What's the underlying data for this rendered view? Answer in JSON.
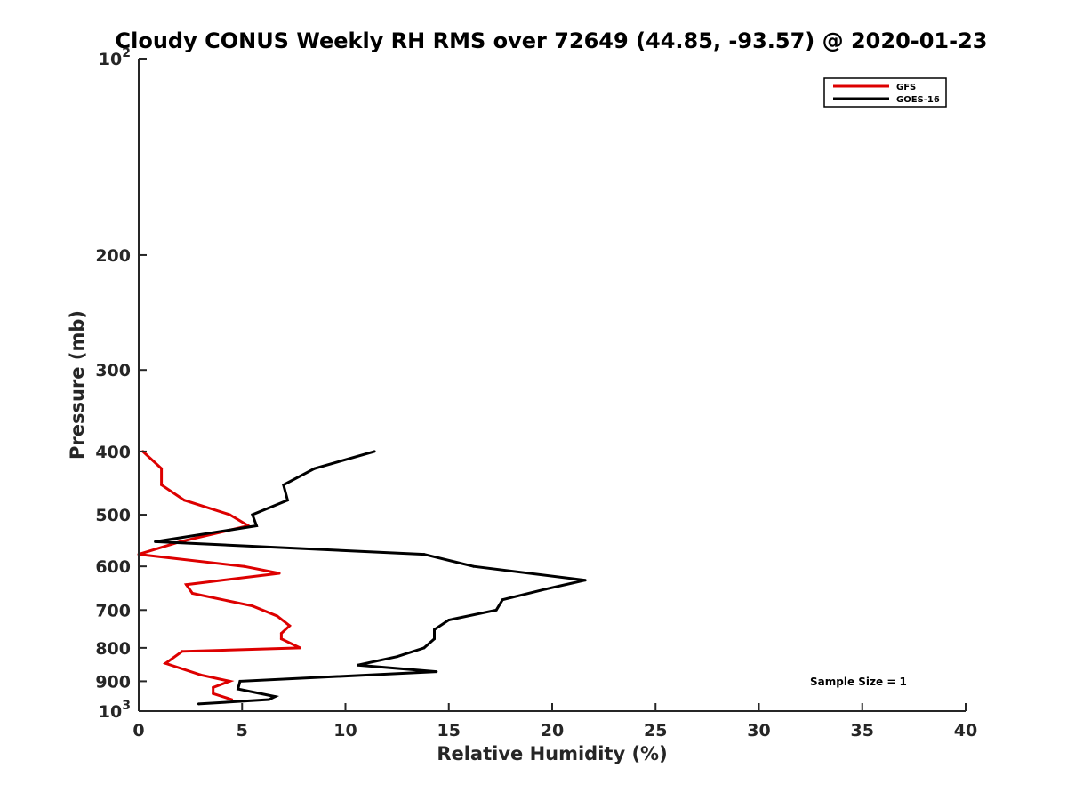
{
  "chart_data": {
    "type": "line",
    "title": "Cloudy CONUS Weekly RH RMS over 72649 (44.85, -93.57) @ 2020-01-23",
    "xlabel": "Relative Humidity (%)",
    "ylabel": "Pressure (mb)",
    "xlim": [
      0,
      40
    ],
    "ylim": [
      100,
      1000
    ],
    "y_scale": "log",
    "y_reversed": true,
    "x_ticks": [
      0,
      5,
      10,
      15,
      20,
      25,
      30,
      35,
      40
    ],
    "x_tick_labels": [
      "0",
      "5",
      "10",
      "15",
      "20",
      "25",
      "30",
      "35",
      "40"
    ],
    "y_ticks": [
      100,
      200,
      300,
      400,
      500,
      600,
      700,
      800,
      900,
      1000
    ],
    "y_tick_labels": [
      {
        "base": "10",
        "sup": "2"
      },
      {
        "base": "200",
        "sup": ""
      },
      {
        "base": "300",
        "sup": ""
      },
      {
        "base": "400",
        "sup": ""
      },
      {
        "base": "500",
        "sup": ""
      },
      {
        "base": "600",
        "sup": ""
      },
      {
        "base": "700",
        "sup": ""
      },
      {
        "base": "800",
        "sup": ""
      },
      {
        "base": "900",
        "sup": ""
      },
      {
        "base": "10",
        "sup": "3"
      }
    ],
    "grid": false,
    "legend_position": "top-right",
    "series": [
      {
        "name": "GFS",
        "color": "#dd0000",
        "points": [
          [
            0.2,
            400
          ],
          [
            1.1,
            425
          ],
          [
            1.1,
            450
          ],
          [
            2.2,
            475
          ],
          [
            4.4,
            500
          ],
          [
            5.3,
            520
          ],
          [
            2.0,
            550
          ],
          [
            0.0,
            575
          ],
          [
            5.1,
            600
          ],
          [
            6.8,
            615
          ],
          [
            2.3,
            640
          ],
          [
            2.6,
            660
          ],
          [
            5.5,
            690
          ],
          [
            6.7,
            715
          ],
          [
            7.3,
            740
          ],
          [
            6.9,
            760
          ],
          [
            6.9,
            775
          ],
          [
            7.8,
            800
          ],
          [
            2.1,
            810
          ],
          [
            1.3,
            845
          ],
          [
            3.0,
            880
          ],
          [
            4.4,
            900
          ],
          [
            3.6,
            920
          ],
          [
            3.6,
            940
          ],
          [
            4.5,
            960
          ]
        ]
      },
      {
        "name": "GOES-16",
        "color": "#000000",
        "points": [
          [
            11.4,
            400
          ],
          [
            8.5,
            425
          ],
          [
            7.0,
            450
          ],
          [
            7.2,
            475
          ],
          [
            5.5,
            500
          ],
          [
            5.7,
            520
          ],
          [
            0.8,
            550
          ],
          [
            13.8,
            575
          ],
          [
            16.2,
            600
          ],
          [
            21.6,
            630
          ],
          [
            19.7,
            650
          ],
          [
            17.6,
            675
          ],
          [
            17.3,
            700
          ],
          [
            15.0,
            725
          ],
          [
            14.3,
            750
          ],
          [
            14.3,
            775
          ],
          [
            13.8,
            800
          ],
          [
            12.5,
            825
          ],
          [
            10.6,
            850
          ],
          [
            14.4,
            870
          ],
          [
            4.9,
            900
          ],
          [
            4.8,
            925
          ],
          [
            6.6,
            950
          ],
          [
            6.3,
            960
          ],
          [
            2.9,
            975
          ]
        ]
      }
    ],
    "annotation": "Sample Size = 1"
  }
}
